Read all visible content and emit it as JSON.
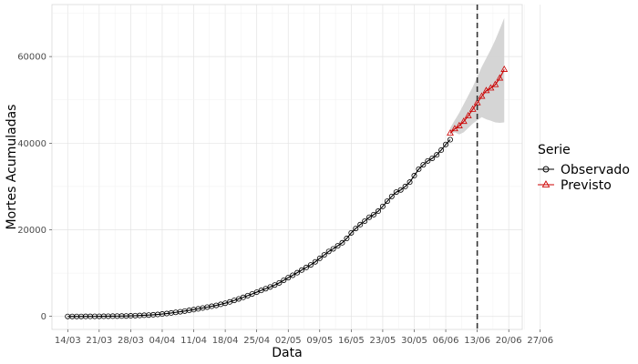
{
  "chart_data": {
    "type": "line",
    "xlabel": "Data",
    "ylabel": "Mortes Acumuladas",
    "x_tick_labels": [
      "14/03",
      "21/03",
      "28/03",
      "04/04",
      "11/04",
      "18/04",
      "25/04",
      "02/05",
      "09/05",
      "16/05",
      "23/05",
      "30/05",
      "06/06",
      "13/06",
      "20/06",
      "27/06"
    ],
    "y_ticks": [
      0,
      20000,
      40000,
      60000
    ],
    "y_tick_labels": [
      "0",
      "20000",
      "40000",
      "60000"
    ],
    "ylim": [
      -3000,
      72000
    ],
    "grid": true,
    "vline_label_position": "13/06",
    "legend": {
      "title": "Serie",
      "placement": "right",
      "entries": [
        {
          "label": "Observado",
          "color": "#000000",
          "marker": "circle"
        },
        {
          "label": "Previsto",
          "color": "#cc0000",
          "marker": "triangle"
        }
      ]
    },
    "series": [
      {
        "name": "Observado",
        "color": "#000000",
        "values": [
          0,
          0,
          0,
          5,
          10,
          15,
          20,
          30,
          40,
          50,
          60,
          75,
          90,
          110,
          140,
          180,
          220,
          270,
          320,
          380,
          460,
          560,
          670,
          800,
          940,
          1080,
          1240,
          1400,
          1560,
          1750,
          1950,
          2150,
          2350,
          2550,
          2800,
          3050,
          3350,
          3700,
          4050,
          4400,
          4800,
          5200,
          5600,
          6000,
          6400,
          6800,
          7250,
          7750,
          8350,
          8950,
          9500,
          10100,
          10700,
          11300,
          11900,
          12600,
          13400,
          14200,
          15000,
          15600,
          16300,
          17000,
          18000,
          19300,
          20300,
          21200,
          22000,
          22900,
          23500,
          24300,
          25400,
          26600,
          27700,
          28700,
          29200,
          30000,
          31000,
          32500,
          34000,
          35000,
          35900,
          36500,
          37300,
          38400,
          39700,
          40800
        ]
      },
      {
        "name": "Previsto",
        "color": "#cc0000",
        "values": [
          42300,
          43300,
          44000,
          45000,
          46300,
          47800,
          49300,
          50800,
          52100,
          52700,
          53500,
          55000,
          57000
        ],
        "lower": [
          42000,
          42500,
          42000,
          42500,
          43500,
          44500,
          45300,
          46000,
          45500,
          45200,
          44800,
          44700,
          44800
        ],
        "upper": [
          43500,
          45300,
          47000,
          49000,
          51000,
          53000,
          55300,
          57600,
          59600,
          61600,
          63800,
          66300,
          68900
        ]
      }
    ]
  }
}
